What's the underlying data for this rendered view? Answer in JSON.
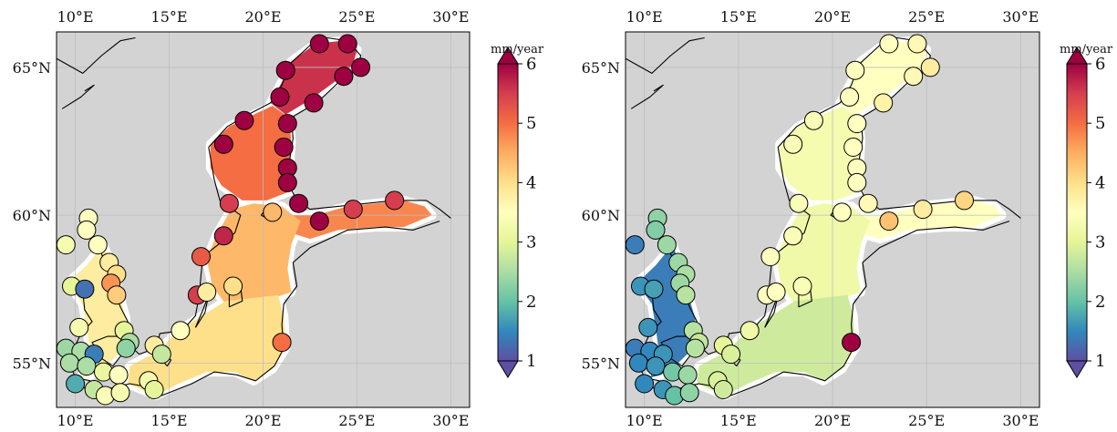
{
  "colors": {
    "land": "#d3d3d3",
    "water_nodata": "#ffffff",
    "coast": "#000000",
    "grid": "#bdbdbd",
    "colormap": [
      "#5e4fa2",
      "#3288bd",
      "#66c2a5",
      "#abdda4",
      "#e6f598",
      "#ffffbf",
      "#fee08b",
      "#fdae61",
      "#f46d43",
      "#d53e4f",
      "#9e0142"
    ]
  },
  "panels": [
    {
      "id": "left",
      "description_unit": "mm/year",
      "lon_ticks": [
        "10°E",
        "15°E",
        "20°E",
        "25°E",
        "30°E"
      ],
      "lat_ticks": [
        "65°N",
        "60°N",
        "55°N"
      ],
      "colorbar": {
        "unit": "mm/year",
        "ticks": [
          "6",
          "5",
          "4",
          "3",
          "2",
          "1"
        ],
        "min": 1,
        "max": 6
      },
      "field": [
        {
          "region": "bothnian-bay",
          "value": 5.6
        },
        {
          "region": "bothnian-sea",
          "value": 5.0
        },
        {
          "region": "gulf-of-finland",
          "value": 4.8
        },
        {
          "region": "baltic-proper-north",
          "value": 4.4
        },
        {
          "region": "baltic-proper-south",
          "value": 4.0
        },
        {
          "region": "kattegat",
          "value": 3.8
        }
      ],
      "stations": [
        {
          "lon": 23.0,
          "lat": 65.8,
          "value": 6.0
        },
        {
          "lon": 24.5,
          "lat": 65.8,
          "value": 6.0
        },
        {
          "lon": 25.2,
          "lat": 65.0,
          "value": 6.0
        },
        {
          "lon": 24.3,
          "lat": 64.7,
          "value": 6.0
        },
        {
          "lon": 21.2,
          "lat": 64.9,
          "value": 6.0
        },
        {
          "lon": 20.9,
          "lat": 64.0,
          "value": 6.0
        },
        {
          "lon": 22.7,
          "lat": 63.8,
          "value": 6.0
        },
        {
          "lon": 21.3,
          "lat": 63.1,
          "value": 6.0
        },
        {
          "lon": 19.0,
          "lat": 63.2,
          "value": 6.0
        },
        {
          "lon": 17.9,
          "lat": 62.4,
          "value": 6.0
        },
        {
          "lon": 21.1,
          "lat": 62.3,
          "value": 6.0
        },
        {
          "lon": 21.3,
          "lat": 61.6,
          "value": 6.0
        },
        {
          "lon": 21.3,
          "lat": 61.1,
          "value": 6.0
        },
        {
          "lon": 18.2,
          "lat": 60.4,
          "value": 5.5
        },
        {
          "lon": 21.9,
          "lat": 60.4,
          "value": 6.0
        },
        {
          "lon": 20.5,
          "lat": 60.1,
          "value": 4.4
        },
        {
          "lon": 23.0,
          "lat": 59.8,
          "value": 6.0
        },
        {
          "lon": 24.8,
          "lat": 60.2,
          "value": 5.5
        },
        {
          "lon": 27.0,
          "lat": 60.5,
          "value": 5.5
        },
        {
          "lon": 17.9,
          "lat": 59.3,
          "value": 5.7
        },
        {
          "lon": 16.7,
          "lat": 58.6,
          "value": 5.2
        },
        {
          "lon": 16.5,
          "lat": 57.3,
          "value": 5.5
        },
        {
          "lon": 17.0,
          "lat": 57.4,
          "value": 3.8
        },
        {
          "lon": 18.4,
          "lat": 57.6,
          "value": 4.0
        },
        {
          "lon": 21.0,
          "lat": 55.7,
          "value": 5.0
        },
        {
          "lon": 15.6,
          "lat": 56.1,
          "value": 3.5
        },
        {
          "lon": 14.2,
          "lat": 55.6,
          "value": 3.8
        },
        {
          "lon": 14.6,
          "lat": 55.3,
          "value": 2.7
        },
        {
          "lon": 13.9,
          "lat": 54.4,
          "value": 3.3
        },
        {
          "lon": 14.2,
          "lat": 54.1,
          "value": 3.0
        },
        {
          "lon": 10.7,
          "lat": 59.9,
          "value": 3.5
        },
        {
          "lon": 10.6,
          "lat": 59.5,
          "value": 3.5
        },
        {
          "lon": 9.5,
          "lat": 59.0,
          "value": 3.3
        },
        {
          "lon": 11.2,
          "lat": 59.0,
          "value": 3.5
        },
        {
          "lon": 11.8,
          "lat": 58.4,
          "value": 3.8
        },
        {
          "lon": 12.2,
          "lat": 58.0,
          "value": 4.0
        },
        {
          "lon": 9.8,
          "lat": 57.6,
          "value": 3.0
        },
        {
          "lon": 10.5,
          "lat": 57.5,
          "value": 1.3
        },
        {
          "lon": 11.9,
          "lat": 57.7,
          "value": 4.7
        },
        {
          "lon": 12.2,
          "lat": 57.3,
          "value": 4.2
        },
        {
          "lon": 10.2,
          "lat": 56.2,
          "value": 3.3
        },
        {
          "lon": 12.6,
          "lat": 56.1,
          "value": 3.0
        },
        {
          "lon": 12.9,
          "lat": 55.7,
          "value": 2.5
        },
        {
          "lon": 12.7,
          "lat": 55.5,
          "value": 2.3
        },
        {
          "lon": 9.5,
          "lat": 55.5,
          "value": 2.4
        },
        {
          "lon": 10.3,
          "lat": 55.4,
          "value": 2.5
        },
        {
          "lon": 11.0,
          "lat": 55.3,
          "value": 1.4
        },
        {
          "lon": 9.7,
          "lat": 55.0,
          "value": 2.5
        },
        {
          "lon": 10.6,
          "lat": 54.9,
          "value": 2.5
        },
        {
          "lon": 11.5,
          "lat": 54.7,
          "value": 3.1
        },
        {
          "lon": 12.3,
          "lat": 54.6,
          "value": 3.5
        },
        {
          "lon": 10.0,
          "lat": 54.3,
          "value": 1.8
        },
        {
          "lon": 11.0,
          "lat": 54.1,
          "value": 2.7
        },
        {
          "lon": 11.6,
          "lat": 53.9,
          "value": 3.4
        },
        {
          "lon": 12.4,
          "lat": 54.0,
          "value": 3.3
        }
      ]
    },
    {
      "id": "right",
      "lon_ticks": [
        "10°E",
        "15°E",
        "20°E",
        "25°E",
        "30°E"
      ],
      "lat_ticks": [
        "65°N",
        "60°N",
        "55°N"
      ],
      "colorbar": {
        "unit": "mm/year",
        "ticks": [
          "6",
          "5",
          "4",
          "3",
          "2",
          "1"
        ],
        "min": 1,
        "max": 6
      },
      "field": [
        {
          "region": "bothnian-bay",
          "value": 3.5
        },
        {
          "region": "bothnian-sea",
          "value": 3.3
        },
        {
          "region": "gulf-of-finland",
          "value": 3.5
        },
        {
          "region": "baltic-proper-north",
          "value": 3.2
        },
        {
          "region": "baltic-proper-south",
          "value": 2.8
        },
        {
          "region": "kattegat",
          "value": 1.4
        }
      ],
      "stations": [
        {
          "lon": 23.0,
          "lat": 65.8,
          "value": 3.5
        },
        {
          "lon": 24.5,
          "lat": 65.8,
          "value": 3.6
        },
        {
          "lon": 25.2,
          "lat": 65.0,
          "value": 3.8
        },
        {
          "lon": 24.3,
          "lat": 64.7,
          "value": 3.6
        },
        {
          "lon": 21.2,
          "lat": 64.9,
          "value": 3.5
        },
        {
          "lon": 20.9,
          "lat": 64.0,
          "value": 3.5
        },
        {
          "lon": 22.7,
          "lat": 63.8,
          "value": 3.7
        },
        {
          "lon": 21.3,
          "lat": 63.1,
          "value": 3.5
        },
        {
          "lon": 19.0,
          "lat": 63.2,
          "value": 3.4
        },
        {
          "lon": 17.9,
          "lat": 62.4,
          "value": 3.4
        },
        {
          "lon": 21.1,
          "lat": 62.3,
          "value": 3.5
        },
        {
          "lon": 21.3,
          "lat": 61.6,
          "value": 3.5
        },
        {
          "lon": 21.3,
          "lat": 61.1,
          "value": 3.5
        },
        {
          "lon": 18.2,
          "lat": 60.4,
          "value": 3.4
        },
        {
          "lon": 21.9,
          "lat": 60.4,
          "value": 3.6
        },
        {
          "lon": 20.5,
          "lat": 60.1,
          "value": 3.5
        },
        {
          "lon": 23.0,
          "lat": 59.8,
          "value": 4.3
        },
        {
          "lon": 24.8,
          "lat": 60.2,
          "value": 3.8
        },
        {
          "lon": 27.0,
          "lat": 60.5,
          "value": 4.1
        },
        {
          "lon": 17.9,
          "lat": 59.3,
          "value": 3.4
        },
        {
          "lon": 16.7,
          "lat": 58.6,
          "value": 3.5
        },
        {
          "lon": 16.5,
          "lat": 57.3,
          "value": 3.5
        },
        {
          "lon": 17.0,
          "lat": 57.4,
          "value": 3.5
        },
        {
          "lon": 18.4,
          "lat": 57.6,
          "value": 3.4
        },
        {
          "lon": 21.0,
          "lat": 55.7,
          "value": 6.0
        },
        {
          "lon": 15.6,
          "lat": 56.1,
          "value": 3.2
        },
        {
          "lon": 14.2,
          "lat": 55.6,
          "value": 3.0
        },
        {
          "lon": 14.6,
          "lat": 55.3,
          "value": 2.9
        },
        {
          "lon": 13.9,
          "lat": 54.4,
          "value": 2.9
        },
        {
          "lon": 14.2,
          "lat": 54.1,
          "value": 2.8
        },
        {
          "lon": 10.7,
          "lat": 59.9,
          "value": 2.3
        },
        {
          "lon": 10.6,
          "lat": 59.5,
          "value": 2.2
        },
        {
          "lon": 9.5,
          "lat": 59.0,
          "value": 1.4
        },
        {
          "lon": 11.2,
          "lat": 59.0,
          "value": 2.4
        },
        {
          "lon": 11.8,
          "lat": 58.4,
          "value": 2.4
        },
        {
          "lon": 12.2,
          "lat": 58.0,
          "value": 2.5
        },
        {
          "lon": 9.8,
          "lat": 57.6,
          "value": 1.6
        },
        {
          "lon": 10.5,
          "lat": 57.5,
          "value": 1.7
        },
        {
          "lon": 11.9,
          "lat": 57.7,
          "value": 2.4
        },
        {
          "lon": 12.2,
          "lat": 57.3,
          "value": 2.6
        },
        {
          "lon": 10.2,
          "lat": 56.2,
          "value": 1.6
        },
        {
          "lon": 12.6,
          "lat": 56.1,
          "value": 2.6
        },
        {
          "lon": 12.9,
          "lat": 55.7,
          "value": 2.7
        },
        {
          "lon": 12.7,
          "lat": 55.5,
          "value": 2.6
        },
        {
          "lon": 9.5,
          "lat": 55.5,
          "value": 1.4
        },
        {
          "lon": 10.3,
          "lat": 55.4,
          "value": 1.5
        },
        {
          "lon": 11.0,
          "lat": 55.3,
          "value": 1.6
        },
        {
          "lon": 9.7,
          "lat": 55.0,
          "value": 1.5
        },
        {
          "lon": 10.6,
          "lat": 54.9,
          "value": 1.6
        },
        {
          "lon": 11.5,
          "lat": 54.7,
          "value": 2.1
        },
        {
          "lon": 12.3,
          "lat": 54.6,
          "value": 2.4
        },
        {
          "lon": 10.0,
          "lat": 54.3,
          "value": 1.5
        },
        {
          "lon": 11.0,
          "lat": 54.1,
          "value": 1.6
        },
        {
          "lon": 11.6,
          "lat": 53.9,
          "value": 2.0
        },
        {
          "lon": 12.4,
          "lat": 54.0,
          "value": 2.3
        }
      ]
    }
  ]
}
